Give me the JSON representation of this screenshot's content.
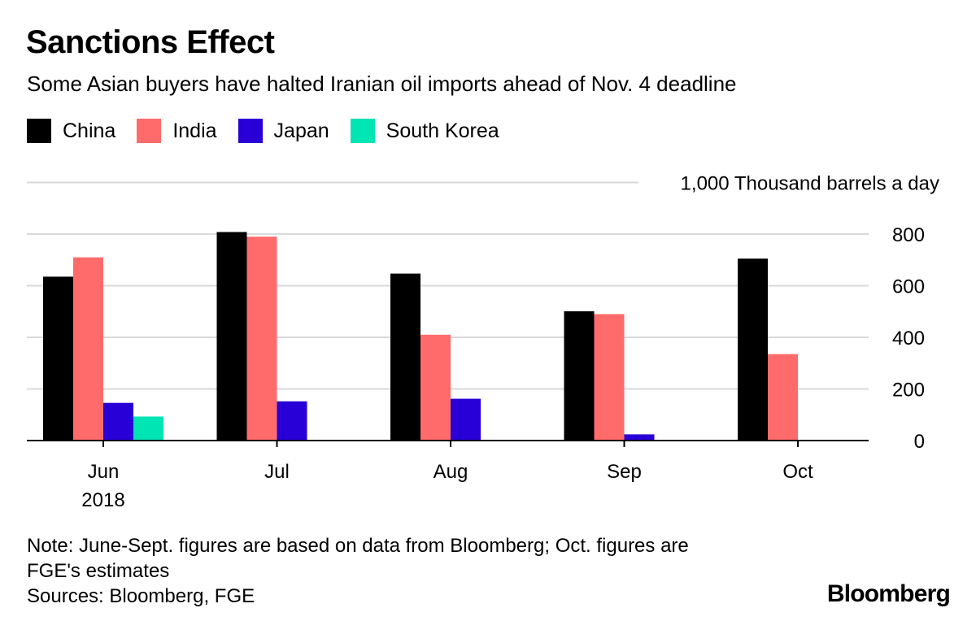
{
  "title": "Sanctions Effect",
  "subtitle": "Some Asian buyers have halted Iranian oil imports ahead of Nov. 4 deadline",
  "note_line1": "Note: June-Sept. figures are based on data from Bloomberg; Oct. figures are",
  "note_line2": "FGE's estimates",
  "sources": "Sources: Bloomberg, FGE",
  "logo": "Bloomberg",
  "colors": {
    "China": "#000000",
    "India": "#ff6b6b",
    "Japan": "#2800d7",
    "South Korea": "#00e5b4",
    "grid": "#d9d9d9"
  },
  "chart_data": {
    "type": "bar",
    "title": "Sanctions Effect",
    "ylabel": "Thousand barrels a day",
    "ylim": [
      0,
      1000
    ],
    "yticks": [
      0,
      200,
      400,
      600,
      800
    ],
    "top_tick_label": "1,000 Thousand barrels a day",
    "categories": [
      "Jun",
      "Jul",
      "Aug",
      "Sep",
      "Oct"
    ],
    "category_sublabels": [
      "2018",
      "",
      "",
      "",
      ""
    ],
    "legend_position": "top-left",
    "series": [
      {
        "name": "China",
        "values": [
          635,
          808,
          647,
          501,
          705
        ]
      },
      {
        "name": "India",
        "values": [
          710,
          790,
          410,
          490,
          335
        ]
      },
      {
        "name": "Japan",
        "values": [
          146,
          152,
          162,
          24,
          3
        ]
      },
      {
        "name": "South Korea",
        "values": [
          93,
          3,
          3,
          3,
          3
        ]
      }
    ]
  }
}
